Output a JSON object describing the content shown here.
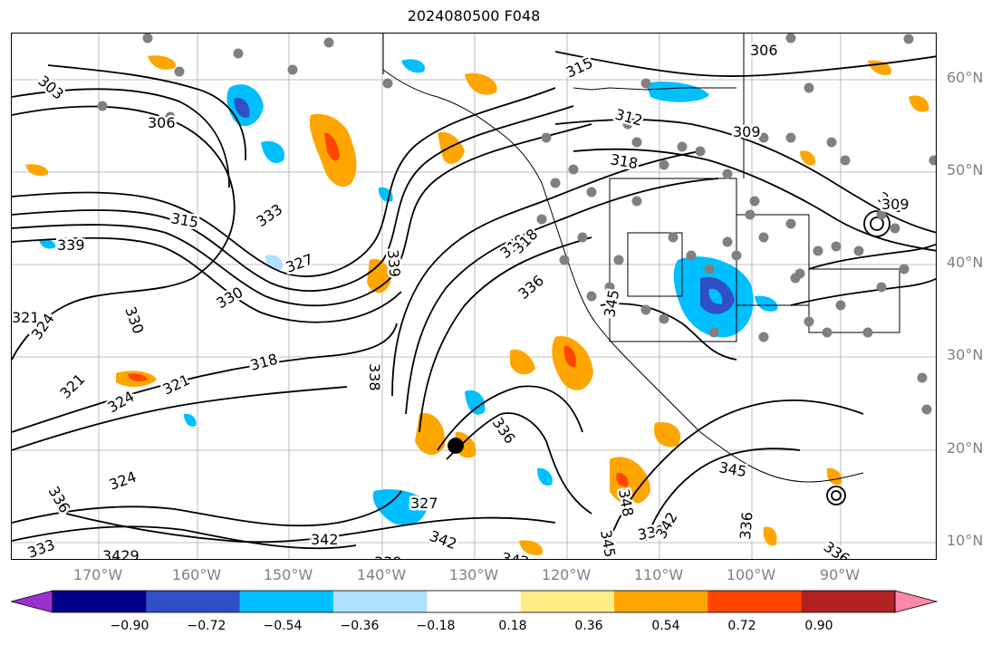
{
  "title": "2024080500 F048",
  "map": {
    "grid": true,
    "lat_labels": [
      "60°N",
      "50°N",
      "40°N",
      "30°N",
      "20°N",
      "10°N"
    ],
    "lon_labels": [
      "170°W",
      "160°W",
      "150°W",
      "140°W",
      "130°W",
      "120°W",
      "110°W",
      "100°W",
      "90°W"
    ]
  },
  "contour_labels": [
    {
      "text": "303"
    },
    {
      "text": "306"
    },
    {
      "text": "306"
    },
    {
      "text": "315"
    },
    {
      "text": "312"
    },
    {
      "text": "309"
    },
    {
      "text": "318"
    },
    {
      "text": "309"
    },
    {
      "text": "315"
    },
    {
      "text": "333"
    },
    {
      "text": "327"
    },
    {
      "text": "330"
    },
    {
      "text": "330"
    },
    {
      "text": "318"
    },
    {
      "text": "321"
    },
    {
      "text": "321"
    },
    {
      "text": "324"
    },
    {
      "text": "318"
    },
    {
      "text": "321"
    },
    {
      "text": "324"
    },
    {
      "text": "324"
    },
    {
      "text": "327"
    },
    {
      "text": "336"
    },
    {
      "text": "342"
    },
    {
      "text": "339"
    },
    {
      "text": "342"
    },
    {
      "text": "345"
    },
    {
      "text": "348"
    },
    {
      "text": "345"
    },
    {
      "text": "339"
    },
    {
      "text": "342"
    },
    {
      "text": "336"
    },
    {
      "text": "336"
    },
    {
      "text": "342"
    },
    {
      "text": "339"
    },
    {
      "text": "3429"
    },
    {
      "text": "336"
    },
    {
      "text": "338"
    },
    {
      "text": "345"
    },
    {
      "text": "339"
    },
    {
      "text": "333"
    },
    {
      "text": "309"
    },
    {
      "text": "318"
    },
    {
      "text": "336"
    }
  ],
  "colorbar": {
    "colors": [
      "#9b30d0",
      "#000088",
      "#3050c8",
      "#00bfff",
      "#aee0ff",
      "#ffffff",
      "#ffee88",
      "#ffa500",
      "#ff4500",
      "#b22222",
      "#ff88aa"
    ],
    "tick_labels": [
      "−0.90",
      "−0.72",
      "−0.54",
      "−0.36",
      "−0.18",
      "0.18",
      "0.36",
      "0.54",
      "0.72",
      "0.90"
    ]
  },
  "colors": {
    "frame": "#000000",
    "grid": "#aaaaaa",
    "contour": "#000000",
    "tick_text": "#808080",
    "station_dot": "#808080"
  }
}
